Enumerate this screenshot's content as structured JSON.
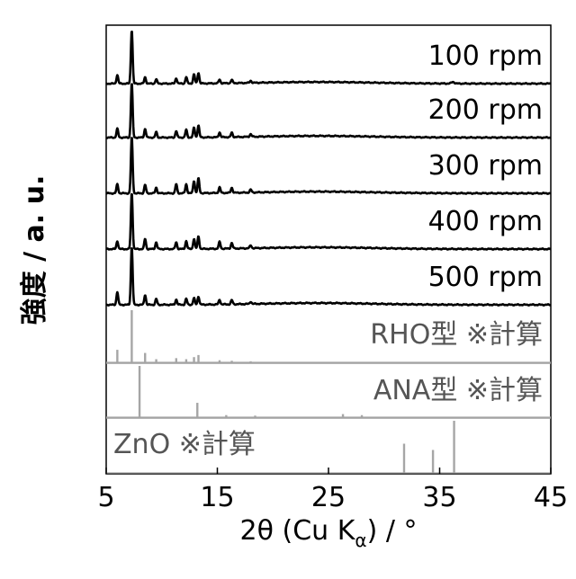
{
  "chart_data": {
    "type": "line",
    "xlabel": "2θ (Cu Kα) / °",
    "xlabel_parts": {
      "prefix": "2θ (Cu K",
      "subscript": "α",
      "suffix": ") / °"
    },
    "ylabel": "強度 / a. u.",
    "xlim": [
      5,
      45
    ],
    "xticks": [
      5,
      15,
      25,
      35,
      45
    ],
    "x_tick_labels": [
      "5",
      "15",
      "25",
      "35",
      "45"
    ],
    "grid": false,
    "series": [
      {
        "name": "100 rpm",
        "color": "#000000",
        "peaks": [
          [
            6.0,
            0.16
          ],
          [
            7.3,
            1.0
          ],
          [
            8.5,
            0.12
          ],
          [
            9.5,
            0.08
          ],
          [
            11.3,
            0.1
          ],
          [
            12.2,
            0.12
          ],
          [
            12.9,
            0.17
          ],
          [
            13.3,
            0.2
          ],
          [
            15.2,
            0.07
          ],
          [
            16.3,
            0.06
          ],
          [
            18.0,
            0.04
          ],
          [
            36.2,
            0.03
          ]
        ],
        "hump": 0.03
      },
      {
        "name": "200 rpm",
        "color": "#000000",
        "peaks": [
          [
            6.0,
            0.16
          ],
          [
            7.3,
            1.0
          ],
          [
            8.5,
            0.16
          ],
          [
            9.5,
            0.1
          ],
          [
            11.3,
            0.12
          ],
          [
            12.2,
            0.14
          ],
          [
            12.9,
            0.18
          ],
          [
            13.3,
            0.22
          ],
          [
            15.2,
            0.09
          ],
          [
            16.3,
            0.08
          ],
          [
            18.0,
            0.05
          ]
        ],
        "hump": 0.03
      },
      {
        "name": "300 rpm",
        "color": "#000000",
        "peaks": [
          [
            6.0,
            0.16
          ],
          [
            7.3,
            1.0
          ],
          [
            8.5,
            0.15
          ],
          [
            9.5,
            0.1
          ],
          [
            11.3,
            0.16
          ],
          [
            12.2,
            0.16
          ],
          [
            12.9,
            0.22
          ],
          [
            13.3,
            0.26
          ],
          [
            15.2,
            0.1
          ],
          [
            16.3,
            0.09
          ],
          [
            18.0,
            0.05
          ]
        ],
        "hump": 0.03
      },
      {
        "name": "400 rpm",
        "color": "#000000",
        "peaks": [
          [
            6.0,
            0.14
          ],
          [
            7.3,
            1.0
          ],
          [
            8.5,
            0.18
          ],
          [
            9.5,
            0.12
          ],
          [
            11.3,
            0.12
          ],
          [
            12.2,
            0.14
          ],
          [
            12.9,
            0.18
          ],
          [
            13.3,
            0.22
          ],
          [
            15.2,
            0.12
          ],
          [
            16.3,
            0.1
          ],
          [
            18.0,
            0.05
          ]
        ],
        "hump": 0.03
      },
      {
        "name": "500 rpm",
        "color": "#000000",
        "peaks": [
          [
            6.0,
            0.22
          ],
          [
            7.3,
            1.0
          ],
          [
            8.5,
            0.17
          ],
          [
            9.5,
            0.1
          ],
          [
            11.3,
            0.09
          ],
          [
            12.2,
            0.1
          ],
          [
            12.9,
            0.11
          ],
          [
            13.3,
            0.14
          ],
          [
            15.2,
            0.08
          ],
          [
            16.3,
            0.07
          ],
          [
            18.0,
            0.04
          ]
        ],
        "hump": 0.03
      }
    ],
    "references": [
      {
        "name": "RHO型 ※計算",
        "color": "#a6a6a6",
        "sticks": [
          [
            6.0,
            0.24
          ],
          [
            7.3,
            1.0
          ],
          [
            8.5,
            0.18
          ],
          [
            9.5,
            0.06
          ],
          [
            11.3,
            0.08
          ],
          [
            12.2,
            0.06
          ],
          [
            12.9,
            0.1
          ],
          [
            13.3,
            0.14
          ],
          [
            15.2,
            0.04
          ],
          [
            16.3,
            0.03
          ],
          [
            18.0,
            0.02
          ]
        ]
      },
      {
        "name": "ANA型 ※計算",
        "color": "#a6a6a6",
        "sticks": [
          [
            8.0,
            1.0
          ],
          [
            13.2,
            0.28
          ],
          [
            15.8,
            0.04
          ],
          [
            18.4,
            0.03
          ],
          [
            26.3,
            0.06
          ],
          [
            28.0,
            0.04
          ]
        ]
      },
      {
        "name": "ZnO ※計算",
        "color": "#a6a6a6",
        "sticks": [
          [
            31.8,
            0.56
          ],
          [
            34.4,
            0.44
          ],
          [
            36.3,
            1.0
          ]
        ]
      }
    ]
  }
}
